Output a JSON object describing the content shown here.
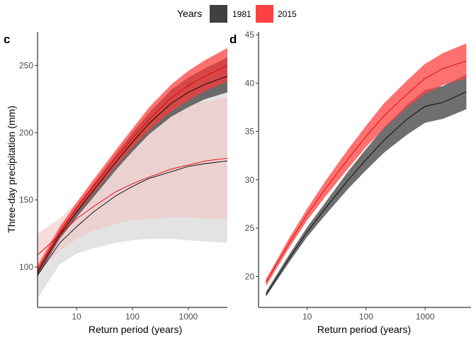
{
  "legend": {
    "title": "Years",
    "position": "top",
    "items": [
      {
        "label": "1981",
        "color": "#404040"
      },
      {
        "label": "2015",
        "color": "#ff4040"
      }
    ]
  },
  "chart_data": [
    {
      "panel": "c",
      "type": "line",
      "x_scale": "log10",
      "xlabel": "Return period (years)",
      "ylabel": "Three-day precipitation (mm)",
      "xlim": [
        2,
        5000
      ],
      "ylim": [
        70,
        275
      ],
      "x_ticks": [
        10,
        100,
        1000
      ],
      "x_tick_labels": [
        "10",
        "100",
        "1000"
      ],
      "y_ticks": [
        100,
        150,
        200,
        250
      ],
      "y_tick_labels": [
        "100",
        "150",
        "200",
        "250"
      ],
      "grid": false,
      "x": [
        2,
        5,
        10,
        20,
        50,
        100,
        200,
        500,
        1000,
        2000,
        5000
      ],
      "series": [
        {
          "name": "1981",
          "model": "wide",
          "color": "#000000",
          "band_color": "#e3e3e3",
          "band_opacity": 1,
          "values": [
            94,
            118,
            130,
            141,
            153,
            160,
            166,
            171,
            175,
            177,
            179
          ],
          "lower": [
            77,
            102,
            110,
            114,
            118,
            120,
            121,
            121,
            120,
            119,
            118
          ],
          "upper": [
            104,
            130,
            146,
            162,
            182,
            196,
            208,
            220,
            225,
            228,
            230
          ]
        },
        {
          "name": "2015",
          "model": "wide",
          "color": "#e00000",
          "band_color": "#f2c4c4",
          "band_opacity": 0.6,
          "values": [
            109,
            124,
            136,
            145,
            156,
            162,
            167,
            173,
            176,
            179,
            181
          ],
          "lower": [
            96,
            112,
            121,
            127,
            132,
            135,
            136,
            137,
            137,
            136,
            136
          ],
          "upper": [
            125,
            136,
            148,
            160,
            180,
            194,
            205,
            215,
            220,
            223,
            226
          ]
        },
        {
          "name": "1981",
          "model": "narrow",
          "color": "#000000",
          "band_color": "#6a6a6a",
          "band_opacity": 1,
          "values": [
            96,
            124,
            141,
            157,
            178,
            193,
            207,
            222,
            230,
            236,
            242
          ],
          "lower": [
            93,
            121,
            137,
            152,
            172,
            186,
            199,
            212,
            219,
            225,
            230
          ],
          "upper": [
            99,
            127,
            145,
            162,
            184,
            200,
            215,
            232,
            241,
            248,
            256
          ]
        },
        {
          "name": "2015",
          "model": "narrow",
          "color": "#e00000",
          "band_color": "#ff3a3a",
          "band_opacity": 0.72,
          "values": [
            98,
            126,
            144,
            160,
            181,
            196,
            210,
            226,
            235,
            242,
            250
          ],
          "lower": [
            95,
            122,
            140,
            155,
            175,
            189,
            202,
            216,
            224,
            231,
            238
          ],
          "upper": [
            101,
            130,
            148,
            165,
            187,
            203,
            219,
            236,
            246,
            254,
            263
          ]
        }
      ]
    },
    {
      "panel": "d",
      "type": "line",
      "x_scale": "log10",
      "xlabel": "Return period (years)",
      "ylabel": "",
      "xlim": [
        1.5,
        6000
      ],
      "ylim": [
        16.8,
        45.3
      ],
      "x_ticks": [
        10,
        100,
        1000
      ],
      "x_tick_labels": [
        "10",
        "100",
        "1000"
      ],
      "y_ticks": [
        20,
        25,
        30,
        35,
        40,
        45
      ],
      "y_tick_labels": [
        "20",
        "25",
        "30",
        "35",
        "40",
        "45"
      ],
      "grid": false,
      "x": [
        2,
        5,
        10,
        20,
        50,
        100,
        200,
        500,
        1000,
        2000,
        5000
      ],
      "series": [
        {
          "name": "1981",
          "color": "#000000",
          "band_color": "#6f6f6f",
          "band_opacity": 1,
          "values": [
            18.1,
            21.9,
            24.6,
            27.0,
            30.0,
            32.1,
            34.1,
            36.3,
            37.6,
            38.0,
            39.1
          ],
          "lower": [
            17.9,
            21.5,
            24.1,
            26.3,
            29.1,
            31.0,
            32.8,
            34.7,
            35.9,
            36.3,
            37.3
          ],
          "upper": [
            18.4,
            22.3,
            25.1,
            27.6,
            30.9,
            33.2,
            35.4,
            37.8,
            39.3,
            39.7,
            40.9
          ]
        },
        {
          "name": "2015",
          "color": "#e00000",
          "band_color": "#ff4040",
          "band_opacity": 0.75,
          "values": [
            19.4,
            23.5,
            26.4,
            29.0,
            32.2,
            34.5,
            36.6,
            38.9,
            40.5,
            41.5,
            42.3
          ],
          "lower": [
            19.0,
            23.0,
            25.8,
            28.2,
            31.2,
            33.4,
            35.3,
            37.5,
            38.9,
            39.8,
            40.5
          ],
          "upper": [
            19.7,
            24.0,
            27.0,
            29.8,
            33.2,
            35.6,
            37.9,
            40.3,
            42.0,
            43.1,
            44.1
          ]
        }
      ]
    }
  ]
}
